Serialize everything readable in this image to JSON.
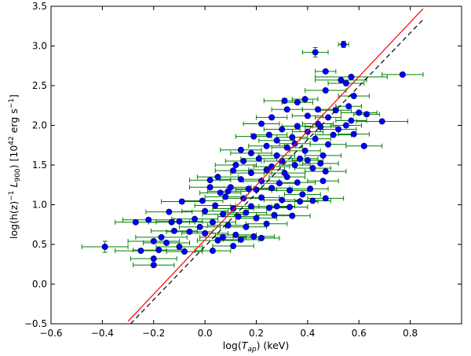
{
  "chart_data": {
    "type": "scatter",
    "title": "",
    "xlabel": "log(T_ap) (keV)",
    "xlabel_parts": {
      "pre": "log(",
      "var": "T",
      "sub": "ap",
      "post": ") (keV)"
    },
    "ylabel": "log(h(z)^-1 L_900) [10^42 erg s^-1]",
    "ylabel_parts": {
      "pre": "log(h(z)",
      "sup1": "−1",
      "var": "L",
      "sub": "900",
      "post": ") [10",
      "sup2": "42",
      "mid": " erg s",
      "sup3": "−1",
      "end": "]"
    },
    "xlim": [
      -0.6,
      1.0
    ],
    "ylim": [
      -0.5,
      3.5
    ],
    "xticks": [
      -0.6,
      -0.4,
      -0.2,
      0.0,
      0.2,
      0.4,
      0.6,
      0.8
    ],
    "xtick_labels": [
      "−0.6",
      "−0.4",
      "−0.2",
      "0.0",
      "0.2",
      "0.4",
      "0.6",
      "0.8"
    ],
    "yticks": [
      -0.5,
      0.0,
      0.5,
      1.0,
      1.5,
      2.0,
      2.5,
      3.0,
      3.5
    ],
    "ytick_labels": [
      "−0.5",
      "0.0",
      "0.5",
      "1.0",
      "1.5",
      "2.0",
      "2.5",
      "3.0",
      "3.5"
    ],
    "grid": false,
    "colors": {
      "marker": "#0000ff",
      "marker_edge": "#000080",
      "errorbar": "#008000",
      "fit_red": "#ff0000",
      "fit_black": "#000000"
    },
    "fit_lines": [
      {
        "name": "red-fit",
        "style": "solid",
        "x": [
          -0.3,
          0.85
        ],
        "y": [
          -0.47,
          3.47
        ]
      },
      {
        "name": "black-fit",
        "style": "dashed",
        "x": [
          -0.29,
          0.855
        ],
        "y": [
          -0.5,
          3.35
        ]
      }
    ],
    "points": [
      [
        0.43,
        2.92,
        0.05,
        0.06
      ],
      [
        0.54,
        3.02,
        0.02,
        0.04
      ],
      [
        0.47,
        2.68,
        0.04,
        0.0
      ],
      [
        0.55,
        2.53,
        0.07,
        0.03
      ],
      [
        0.77,
        2.64,
        0.08,
        0.02
      ],
      [
        0.57,
        2.61,
        0.14,
        0.0
      ],
      [
        0.53,
        2.57,
        0.1,
        0.0
      ],
      [
        0.47,
        2.44,
        0.08,
        0.0
      ],
      [
        0.39,
        2.33,
        0.05,
        0.0
      ],
      [
        0.36,
        2.29,
        0.06,
        0.0
      ],
      [
        0.31,
        2.31,
        0.08,
        0.03
      ],
      [
        0.32,
        2.2,
        0.06,
        0.0
      ],
      [
        0.44,
        2.2,
        0.06,
        0.0
      ],
      [
        0.58,
        2.37,
        0.06,
        0.0
      ],
      [
        0.56,
        2.24,
        0.05,
        0.0
      ],
      [
        0.51,
        2.19,
        0.06,
        0.0
      ],
      [
        0.6,
        2.16,
        0.07,
        0.0
      ],
      [
        0.69,
        2.05,
        0.1,
        0.0
      ],
      [
        0.63,
        2.14,
        0.05,
        0.0
      ],
      [
        0.57,
        2.06,
        0.06,
        0.0
      ],
      [
        0.48,
        2.1,
        0.05,
        0.0
      ],
      [
        0.26,
        2.1,
        0.06,
        0.0
      ],
      [
        0.22,
        2.02,
        0.07,
        0.0
      ],
      [
        0.3,
        1.95,
        0.07,
        0.0
      ],
      [
        0.36,
        1.99,
        0.06,
        0.0
      ],
      [
        0.4,
        1.92,
        0.06,
        0.0
      ],
      [
        0.45,
        1.98,
        0.06,
        0.0
      ],
      [
        0.52,
        1.95,
        0.07,
        0.0
      ],
      [
        0.58,
        1.89,
        0.06,
        0.0
      ],
      [
        0.43,
        1.83,
        0.06,
        0.0
      ],
      [
        0.48,
        1.76,
        0.07,
        0.0
      ],
      [
        0.62,
        1.74,
        0.07,
        0.0
      ],
      [
        0.34,
        1.85,
        0.06,
        0.0
      ],
      [
        0.28,
        1.81,
        0.07,
        0.0
      ],
      [
        0.19,
        1.86,
        0.07,
        0.0
      ],
      [
        0.14,
        1.69,
        0.08,
        0.0
      ],
      [
        0.24,
        1.74,
        0.07,
        0.0
      ],
      [
        0.32,
        1.72,
        0.06,
        0.0
      ],
      [
        0.39,
        1.68,
        0.06,
        0.0
      ],
      [
        0.46,
        1.62,
        0.07,
        0.0
      ],
      [
        0.37,
        1.58,
        0.07,
        0.0
      ],
      [
        0.28,
        1.62,
        0.07,
        0.0
      ],
      [
        0.21,
        1.58,
        0.07,
        0.0
      ],
      [
        0.15,
        1.55,
        0.07,
        0.0
      ],
      [
        0.26,
        1.48,
        0.07,
        0.0
      ],
      [
        0.35,
        1.5,
        0.06,
        0.0
      ],
      [
        0.42,
        1.46,
        0.07,
        0.0
      ],
      [
        0.47,
        1.42,
        0.08,
        0.0
      ],
      [
        0.4,
        1.56,
        0.06,
        0.0
      ],
      [
        0.31,
        1.4,
        0.08,
        0.0
      ],
      [
        0.24,
        1.44,
        0.07,
        0.0
      ],
      [
        0.18,
        1.4,
        0.08,
        0.0
      ],
      [
        0.11,
        1.43,
        0.07,
        0.0
      ],
      [
        0.05,
        1.35,
        0.08,
        0.0
      ],
      [
        0.14,
        1.32,
        0.08,
        0.0
      ],
      [
        0.22,
        1.3,
        0.07,
        0.0
      ],
      [
        0.29,
        1.27,
        0.07,
        0.0
      ],
      [
        0.36,
        1.28,
        0.07,
        0.0
      ],
      [
        0.46,
        1.3,
        0.06,
        0.0
      ],
      [
        0.41,
        1.2,
        0.07,
        0.0
      ],
      [
        0.33,
        1.18,
        0.07,
        0.0
      ],
      [
        0.26,
        1.21,
        0.07,
        0.0
      ],
      [
        0.17,
        1.2,
        0.08,
        0.0
      ],
      [
        0.09,
        1.17,
        0.08,
        0.0
      ],
      [
        0.02,
        1.22,
        0.08,
        0.0
      ],
      [
        0.08,
        1.1,
        0.08,
        0.0
      ],
      [
        0.15,
        1.08,
        0.08,
        0.0
      ],
      [
        0.22,
        1.09,
        0.07,
        0.0
      ],
      [
        0.3,
        1.06,
        0.07,
        0.0
      ],
      [
        0.37,
        1.04,
        0.07,
        0.0
      ],
      [
        0.47,
        1.08,
        0.07,
        0.0
      ],
      [
        0.33,
        0.97,
        0.07,
        0.0
      ],
      [
        0.25,
        0.96,
        0.08,
        0.0
      ],
      [
        0.18,
        0.98,
        0.08,
        0.0
      ],
      [
        0.11,
        0.95,
        0.08,
        0.0
      ],
      [
        0.04,
        0.99,
        0.08,
        0.0
      ],
      [
        -0.01,
        1.05,
        0.08,
        0.0
      ],
      [
        0.0,
        0.92,
        0.09,
        0.0
      ],
      [
        0.07,
        0.88,
        0.08,
        0.0
      ],
      [
        0.13,
        0.85,
        0.08,
        0.0
      ],
      [
        0.2,
        0.83,
        0.08,
        0.0
      ],
      [
        0.27,
        0.87,
        0.07,
        0.0
      ],
      [
        0.34,
        0.86,
        0.07,
        0.0
      ],
      [
        0.24,
        0.76,
        0.08,
        0.0
      ],
      [
        0.16,
        0.72,
        0.08,
        0.0
      ],
      [
        0.09,
        0.74,
        0.08,
        0.0
      ],
      [
        0.03,
        0.78,
        0.09,
        0.0
      ],
      [
        -0.04,
        0.82,
        0.09,
        0.0
      ],
      [
        -0.1,
        0.79,
        0.09,
        0.0
      ],
      [
        -0.14,
        0.91,
        0.09,
        0.0
      ],
      [
        -0.22,
        0.81,
        0.1,
        0.0
      ],
      [
        0.12,
        0.62,
        0.08,
        0.0
      ],
      [
        0.19,
        0.6,
        0.08,
        0.0
      ],
      [
        0.07,
        0.59,
        0.09,
        0.0
      ],
      [
        0.0,
        0.64,
        0.09,
        0.0
      ],
      [
        -0.06,
        0.66,
        0.09,
        0.0
      ],
      [
        -0.12,
        0.67,
        0.09,
        0.0
      ],
      [
        -0.17,
        0.59,
        0.1,
        0.0
      ],
      [
        -0.2,
        0.54,
        0.1,
        0.0
      ],
      [
        -0.15,
        0.52,
        0.09,
        0.0
      ],
      [
        -0.1,
        0.47,
        0.09,
        0.0
      ],
      [
        -0.18,
        0.43,
        0.1,
        0.0
      ],
      [
        -0.25,
        0.42,
        0.1,
        0.0
      ],
      [
        -0.2,
        0.32,
        0.09,
        0.0
      ],
      [
        -0.2,
        0.24,
        0.08,
        0.0
      ],
      [
        -0.39,
        0.47,
        0.09,
        0.07
      ],
      [
        -0.08,
        0.41,
        0.07,
        0.0
      ],
      [
        0.03,
        0.42,
        0.07,
        0.0
      ],
      [
        0.11,
        0.48,
        0.08,
        0.0
      ],
      [
        0.05,
        0.55,
        0.08,
        0.0
      ],
      [
        0.14,
        0.56,
        0.07,
        0.0
      ],
      [
        0.22,
        0.58,
        0.07,
        0.0
      ],
      [
        -0.27,
        0.78,
        0.08,
        0.0
      ],
      [
        -0.09,
        1.04,
        0.08,
        0.0
      ],
      [
        0.02,
        1.31,
        0.08,
        0.0
      ],
      [
        0.1,
        1.22,
        0.08,
        0.0
      ],
      [
        0.2,
        1.19,
        0.08,
        0.0
      ],
      [
        0.38,
        1.13,
        0.07,
        0.0
      ],
      [
        0.45,
        1.52,
        0.07,
        0.0
      ],
      [
        0.5,
        1.88,
        0.07,
        0.0
      ],
      [
        0.55,
        2.0,
        0.06,
        0.0
      ],
      [
        0.4,
        2.12,
        0.06,
        0.0
      ],
      [
        0.35,
        1.77,
        0.06,
        0.0
      ],
      [
        0.3,
        1.55,
        0.07,
        0.0
      ],
      [
        0.18,
        1.65,
        0.08,
        0.0
      ],
      [
        0.12,
        1.5,
        0.08,
        0.0
      ],
      [
        0.06,
        1.15,
        0.08,
        0.0
      ],
      [
        -0.02,
        0.72,
        0.08,
        0.0
      ],
      [
        0.16,
        0.9,
        0.08,
        0.0
      ],
      [
        0.28,
        0.98,
        0.07,
        0.0
      ],
      [
        0.42,
        1.05,
        0.07,
        0.0
      ],
      [
        0.32,
        1.35,
        0.07,
        0.0
      ],
      [
        0.25,
        1.88,
        0.07,
        0.0
      ],
      [
        0.44,
        2.02,
        0.06,
        0.0
      ],
      [
        -0.13,
        0.78,
        0.09,
        0.0
      ]
    ]
  }
}
